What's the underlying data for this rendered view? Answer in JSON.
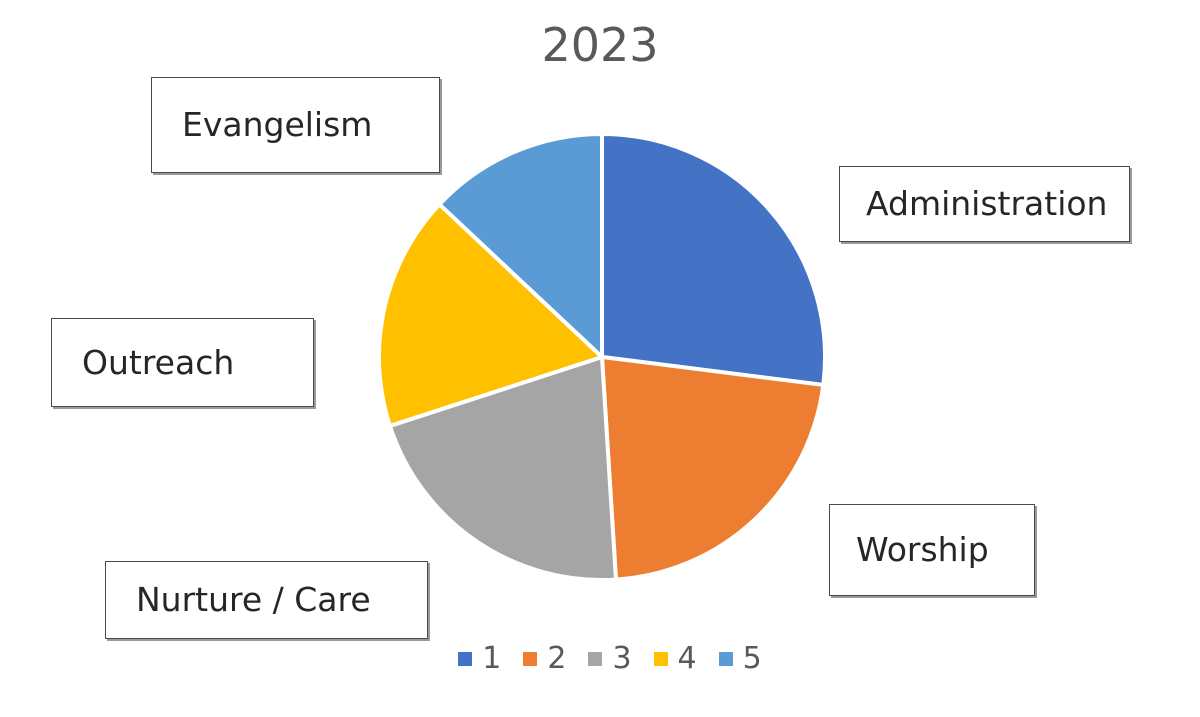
{
  "chart_data": {
    "type": "pie",
    "title": "2023",
    "categories": [
      "1",
      "2",
      "3",
      "4",
      "5"
    ],
    "values": [
      27,
      22,
      21,
      17,
      13
    ],
    "colors": [
      "#4472c4",
      "#ed7d31",
      "#a5a5a5",
      "#ffc000",
      "#5b9bd5"
    ],
    "start_angle_deg": 0,
    "direction": "clockwise",
    "legend_position": "bottom",
    "slice_labels": [
      "Administration",
      "Worship",
      "Nurture / Care",
      "Outreach",
      "Evangelism"
    ]
  }
}
